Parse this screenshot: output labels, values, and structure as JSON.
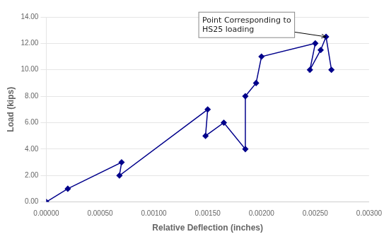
{
  "chart_data": {
    "type": "line",
    "x": [
      0.0,
      0.0002,
      0.0007,
      0.00068,
      0.0015,
      0.00148,
      0.00165,
      0.00185,
      0.00185,
      0.00195,
      0.002,
      0.0025,
      0.00245,
      0.00255,
      0.0026,
      0.00265
    ],
    "values": [
      0.0,
      1.0,
      3.0,
      2.0,
      7.0,
      5.0,
      6.0,
      4.0,
      8.0,
      9.0,
      11.0,
      12.0,
      10.0,
      11.5,
      12.5,
      10.0
    ],
    "color": "#00008B",
    "marker": "diamond",
    "xlabel": "Relative Deflection (inches)",
    "ylabel": "Load (kips)",
    "xlim": [
      0.0,
      0.003
    ],
    "ylim": [
      0.0,
      14.0
    ],
    "xticks": [
      {
        "value": 0.0,
        "label": "0.00000"
      },
      {
        "value": 0.0005,
        "label": "0.00050"
      },
      {
        "value": 0.001,
        "label": "0.00100"
      },
      {
        "value": 0.0015,
        "label": "0.00150"
      },
      {
        "value": 0.002,
        "label": "0.00200"
      },
      {
        "value": 0.0025,
        "label": "0.00250"
      },
      {
        "value": 0.003,
        "label": "0.00300"
      }
    ],
    "yticks": [
      {
        "value": 0.0,
        "label": "0.00"
      },
      {
        "value": 2.0,
        "label": "2.00"
      },
      {
        "value": 4.0,
        "label": "4.00"
      },
      {
        "value": 6.0,
        "label": "6.00"
      },
      {
        "value": 8.0,
        "label": "8.00"
      },
      {
        "value": 10.0,
        "label": "10.00"
      },
      {
        "value": 12.0,
        "label": "12.00"
      },
      {
        "value": 14.0,
        "label": "14.00"
      }
    ],
    "grid": "y",
    "annotations": [
      {
        "text": "Point Corresponding to\nHS25 loading",
        "x": 0.0026,
        "y": 12.5,
        "text_x": 0.00145,
        "text_y": 13.4
      }
    ]
  }
}
